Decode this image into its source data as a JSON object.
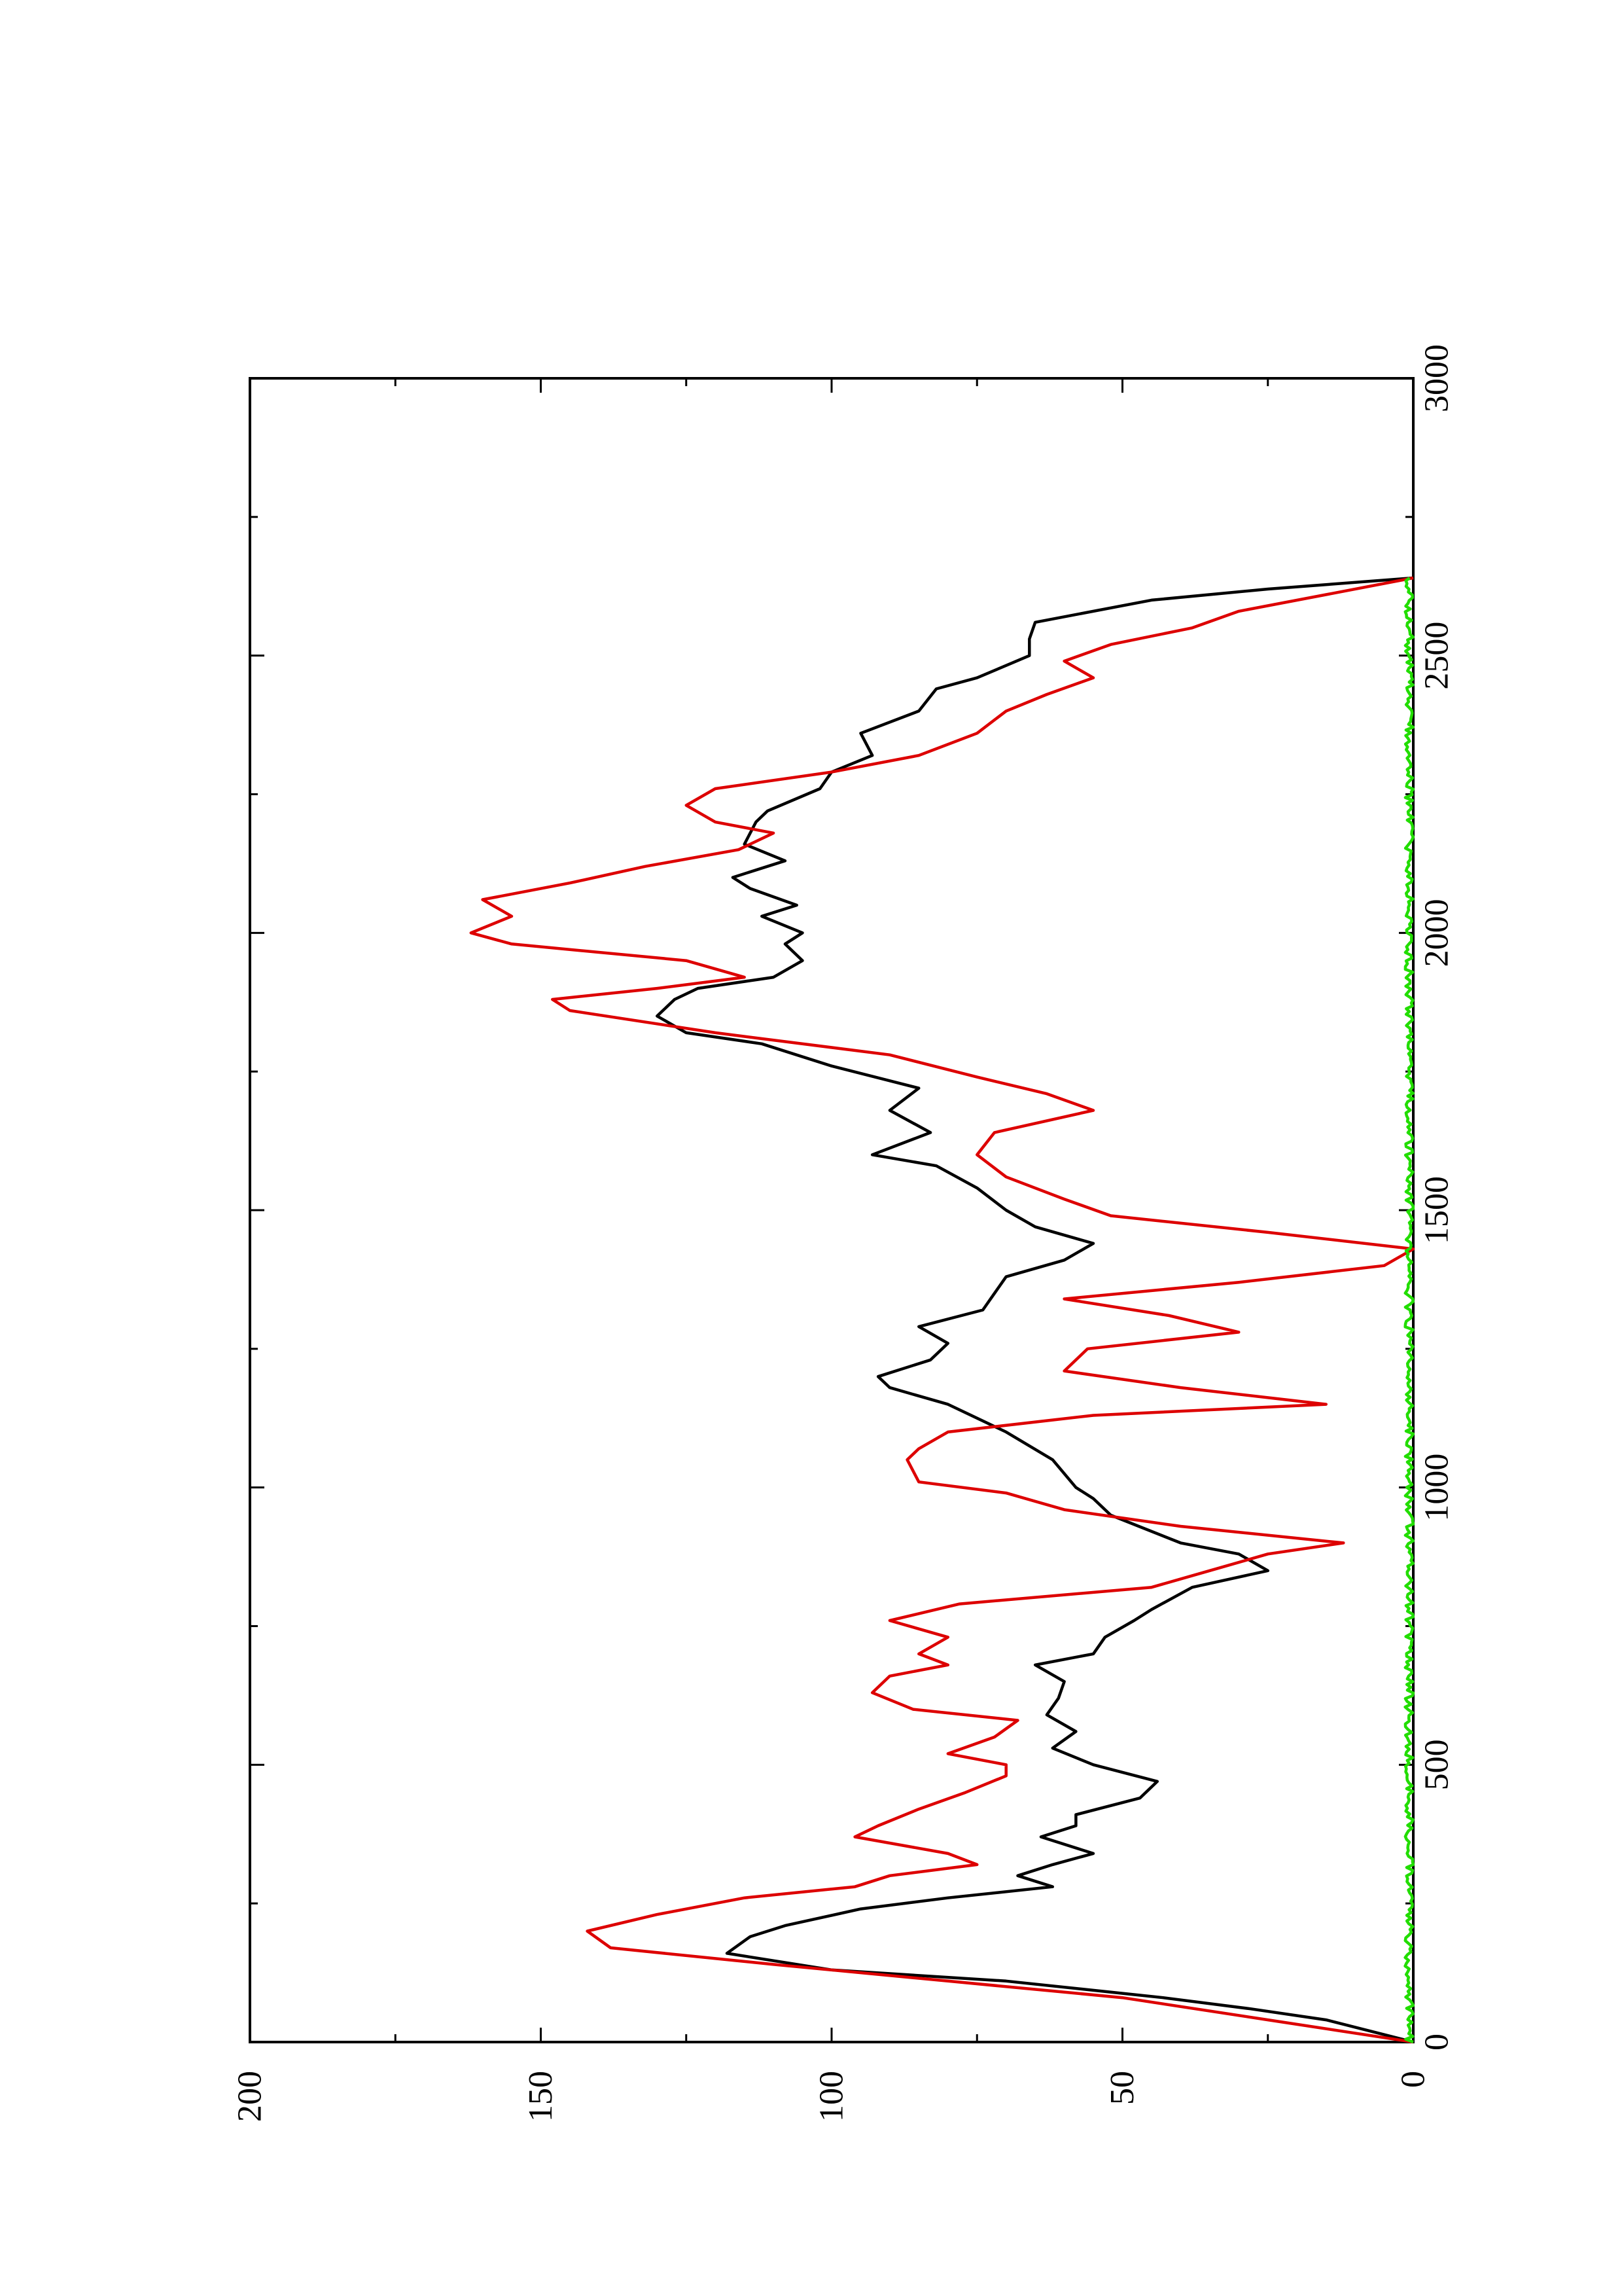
{
  "chart_data": {
    "type": "line",
    "title": "",
    "xlabel": "",
    "ylabel": "",
    "xlim": [
      0,
      3000
    ],
    "ylim": [
      0,
      200
    ],
    "x_ticks": [
      0,
      500,
      1000,
      1500,
      2000,
      2500,
      3000
    ],
    "x_minor_ticks": [
      250,
      750,
      1250,
      1750,
      2250,
      2750
    ],
    "y_ticks": [
      0,
      50,
      100,
      150,
      200
    ],
    "y_minor_ticks": [
      25,
      75,
      125,
      175
    ],
    "x_tick_labels": [
      "0",
      "500",
      "1000",
      "1500",
      "2000",
      "2500",
      "3000"
    ],
    "y_tick_labels": [
      "0",
      "50",
      "100",
      "150",
      "200"
    ],
    "grid": false,
    "legend": "none",
    "orientation": "rotated 90 degrees counterclockwise on the page",
    "series": [
      {
        "color": "#000000",
        "x": [
          0,
          40,
          60,
          80,
          110,
          130,
          160,
          190,
          210,
          240,
          260,
          280,
          300,
          320,
          340,
          370,
          390,
          410,
          440,
          470,
          500,
          530,
          560,
          590,
          620,
          650,
          680,
          700,
          730,
          760,
          780,
          820,
          850,
          880,
          900,
          950,
          980,
          1000,
          1050,
          1100,
          1150,
          1180,
          1200,
          1230,
          1260,
          1290,
          1320,
          1350,
          1380,
          1410,
          1440,
          1470,
          1500,
          1540,
          1580,
          1600,
          1640,
          1680,
          1720,
          1760,
          1800,
          1820,
          1850,
          1880,
          1900,
          1920,
          1950,
          1980,
          2000,
          2030,
          2050,
          2080,
          2100,
          2130,
          2160,
          2200,
          2220,
          2260,
          2290,
          2320,
          2360,
          2400,
          2440,
          2460,
          2500,
          2530,
          2560,
          2600,
          2620,
          2640
        ],
        "y": [
          0,
          15,
          28,
          43,
          70,
          100,
          118,
          114,
          108,
          95,
          80,
          62,
          68,
          62,
          55,
          64,
          58,
          58,
          47,
          44,
          55,
          62,
          58,
          63,
          61,
          60,
          65,
          55,
          53,
          48,
          45,
          38,
          25,
          30,
          40,
          52,
          55,
          58,
          62,
          70,
          80,
          90,
          92,
          83,
          80,
          85,
          74,
          72,
          70,
          60,
          55,
          65,
          70,
          75,
          82,
          93,
          83,
          90,
          85,
          100,
          112,
          125,
          130,
          127,
          123,
          110,
          105,
          108,
          105,
          112,
          106,
          114,
          117,
          108,
          115,
          113,
          111,
          102,
          100,
          93,
          95,
          85,
          82,
          75,
          66,
          66,
          65,
          45,
          25,
          0
        ]
      },
      {
        "color": "#dd0000",
        "x": [
          0,
          40,
          80,
          110,
          140,
          170,
          200,
          230,
          260,
          280,
          300,
          320,
          340,
          370,
          390,
          420,
          450,
          480,
          500,
          520,
          550,
          580,
          600,
          630,
          660,
          680,
          700,
          730,
          760,
          790,
          820,
          850,
          880,
          900,
          930,
          960,
          990,
          1010,
          1050,
          1070,
          1100,
          1130,
          1150,
          1180,
          1210,
          1250,
          1280,
          1310,
          1340,
          1370,
          1400,
          1430,
          1460,
          1490,
          1520,
          1560,
          1600,
          1640,
          1680,
          1710,
          1740,
          1780,
          1820,
          1860,
          1880,
          1900,
          1920,
          1950,
          1980,
          2000,
          2030,
          2060,
          2090,
          2120,
          2150,
          2180,
          2200,
          2230,
          2260,
          2290,
          2320,
          2360,
          2400,
          2430,
          2460,
          2490,
          2520,
          2550,
          2580,
          2610,
          2640
        ],
        "y": [
          0,
          25,
          50,
          80,
          110,
          138,
          142,
          130,
          115,
          96,
          90,
          75,
          80,
          96,
          92,
          85,
          77,
          70,
          70,
          80,
          72,
          68,
          86,
          93,
          90,
          80,
          85,
          80,
          90,
          78,
          45,
          35,
          25,
          12,
          40,
          60,
          70,
          85,
          87,
          85,
          80,
          55,
          15,
          40,
          60,
          56,
          30,
          42,
          60,
          30,
          5,
          0,
          25,
          52,
          60,
          70,
          75,
          72,
          55,
          63,
          75,
          90,
          120,
          145,
          148,
          130,
          115,
          125,
          155,
          162,
          155,
          160,
          145,
          132,
          116,
          110,
          120,
          125,
          120,
          100,
          85,
          75,
          70,
          63,
          55,
          60,
          52,
          38,
          30,
          15,
          0
        ]
      },
      {
        "color": "#22dd00",
        "x": [
          0,
          2640
        ],
        "y": [
          0,
          0
        ]
      }
    ]
  }
}
